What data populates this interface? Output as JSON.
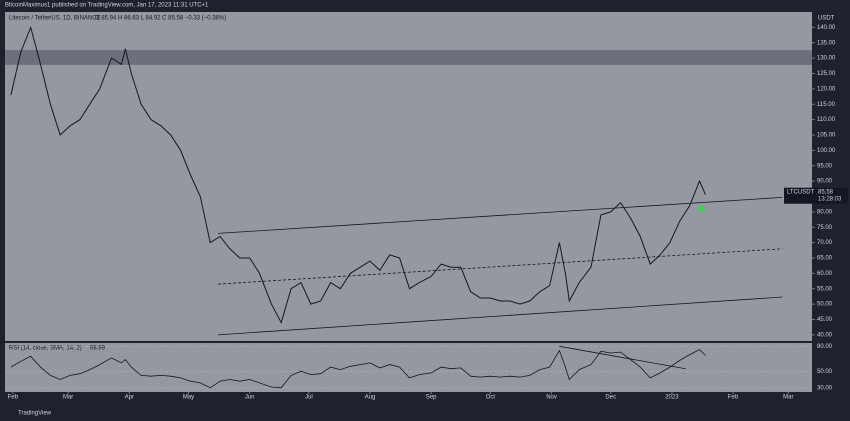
{
  "chart_data": {
    "type": "line",
    "publisher": "BitcoinMaximus1 published on TradingView.com, Jan 17, 2023 11:31 UTC+1",
    "symbol_info": "Litecoin / TetherUS, 1D, BINANCE",
    "quote": "O 85.94  H 86.63  L 84.92  C 85.58  −0.33 (−0.38%)",
    "currency": "USDT",
    "ticker": "LTCUSDT",
    "last_price": 85.58,
    "countdown": "13:28:03",
    "rsi_label": "RSI (14, close, SMA, 14, 2)",
    "rsi_last": 68.99,
    "brand": "TradingView",
    "color": "#131722",
    "x": [
      30,
      35,
      40,
      45,
      50,
      55,
      60,
      65,
      70,
      75,
      81,
      86,
      88,
      91,
      96,
      101,
      106,
      111,
      116,
      121,
      126,
      131,
      136,
      141,
      146,
      151,
      156,
      162,
      167,
      172,
      177,
      182,
      187,
      192,
      197,
      202,
      207,
      212,
      217,
      222,
      227,
      232,
      237,
      243,
      248,
      253,
      258,
      263,
      268,
      273,
      278,
      283,
      288,
      293,
      298,
      303,
      308,
      311,
      313,
      318,
      324,
      329,
      334,
      339,
      344,
      349,
      354,
      359,
      364,
      369,
      374,
      379,
      382
    ],
    "values": [
      118,
      132,
      140,
      128,
      115,
      105,
      108,
      110,
      115,
      120,
      130,
      128,
      133,
      125,
      115,
      110,
      108,
      105,
      100,
      92,
      85,
      70,
      72,
      68,
      65,
      65,
      60,
      50,
      44,
      55,
      57,
      50,
      51,
      57,
      55,
      60,
      62,
      64,
      61,
      66,
      65,
      55,
      57,
      59,
      63,
      62,
      62,
      54,
      52,
      52,
      51,
      51,
      50,
      51,
      54,
      56,
      70,
      60,
      51,
      57,
      62,
      79,
      80,
      83,
      78,
      72,
      63,
      66,
      70,
      77,
      82,
      90,
      85.58
    ],
    "rsi": [
      55,
      62,
      68,
      55,
      45,
      40,
      45,
      47,
      52,
      58,
      66,
      60,
      64,
      55,
      45,
      44,
      45,
      44,
      42,
      38,
      36,
      30,
      38,
      40,
      38,
      40,
      36,
      31,
      30,
      45,
      50,
      46,
      47,
      55,
      52,
      56,
      58,
      60,
      54,
      58,
      55,
      42,
      46,
      48,
      55,
      53,
      54,
      44,
      43,
      44,
      43,
      44,
      43,
      45,
      52,
      55,
      75,
      55,
      40,
      52,
      58,
      74,
      72,
      73,
      64,
      55,
      42,
      48,
      55,
      63,
      70,
      76,
      69
    ],
    "xlim": [
      27,
      436
    ],
    "xticks": [
      {
        "value": 31,
        "label": "Feb"
      },
      {
        "value": 59,
        "label": "Mar"
      },
      {
        "value": 90,
        "label": "Apr"
      },
      {
        "value": 120,
        "label": "May"
      },
      {
        "value": 151,
        "label": "Jun"
      },
      {
        "value": 181,
        "label": "Jul"
      },
      {
        "value": 212,
        "label": "Aug"
      },
      {
        "value": 243,
        "label": "Sep"
      },
      {
        "value": 273,
        "label": "Oct"
      },
      {
        "value": 304,
        "label": "Nov"
      },
      {
        "value": 334,
        "label": "Dec"
      },
      {
        "value": 365,
        "label": "2023"
      },
      {
        "value": 396,
        "label": "Feb"
      },
      {
        "value": 424,
        "label": "Mar"
      }
    ],
    "ylim": [
      38,
      145
    ],
    "yticks": [
      {
        "value": 40,
        "label": "40.00"
      },
      {
        "value": 45,
        "label": "45.00"
      },
      {
        "value": 50,
        "label": "50.00"
      },
      {
        "value": 55,
        "label": "55.00"
      },
      {
        "value": 60,
        "label": "60.00"
      },
      {
        "value": 65,
        "label": "65.00"
      },
      {
        "value": 70,
        "label": "70.00"
      },
      {
        "value": 75,
        "label": "75.00"
      },
      {
        "value": 80,
        "label": "80.00"
      },
      {
        "value": 85,
        "label": "85.00"
      },
      {
        "value": 90,
        "label": "90.00"
      },
      {
        "value": 95,
        "label": "95.00"
      },
      {
        "value": 100,
        "label": "100.00"
      },
      {
        "value": 105,
        "label": "105.00"
      },
      {
        "value": 110,
        "label": "110.00"
      },
      {
        "value": 115,
        "label": "115.00"
      },
      {
        "value": 120,
        "label": "120.00"
      },
      {
        "value": 125,
        "label": "125.00"
      },
      {
        "value": 130,
        "label": "130.00"
      },
      {
        "value": 135,
        "label": "135.00"
      },
      {
        "value": 140,
        "label": "140.00"
      }
    ],
    "rsi_ylim": [
      25,
      84
    ],
    "rsi_yticks": [
      {
        "value": 30,
        "label": "30.00"
      },
      {
        "value": 50,
        "label": "50.00"
      },
      {
        "value": 80,
        "label": "80.00"
      }
    ],
    "zone": [
      127.8,
      132.6
    ],
    "channel": [
      {
        "x": [
          135,
          421
        ],
        "y": [
          73,
          84.7
        ],
        "dashed": false
      },
      {
        "x": [
          135,
          421
        ],
        "y": [
          56.5,
          68
        ],
        "dashed": true
      },
      {
        "x": [
          135,
          421
        ],
        "y": [
          40,
          52.3
        ],
        "dashed": false
      }
    ],
    "rsi_trend": {
      "x": [
        308,
        372
      ],
      "y": [
        80,
        53
      ]
    }
  }
}
